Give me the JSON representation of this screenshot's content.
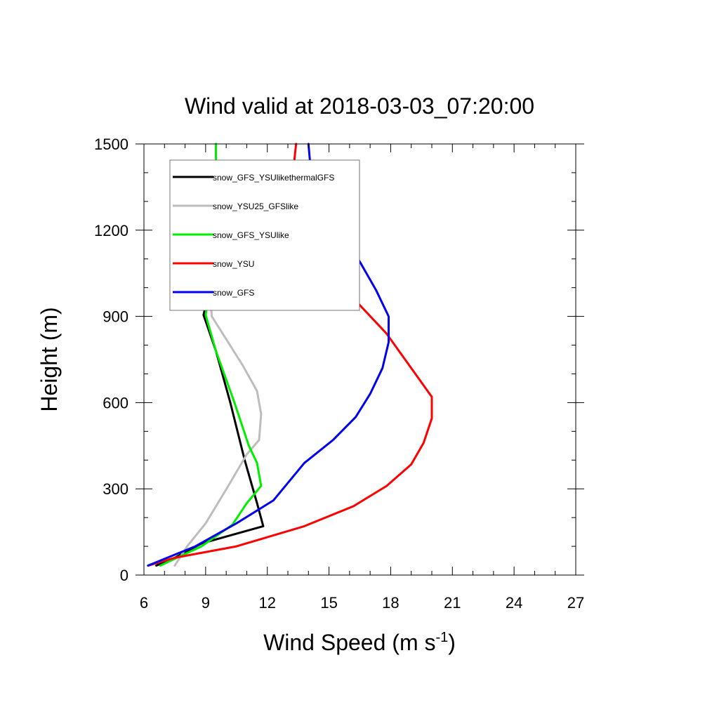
{
  "chart_data": {
    "type": "line",
    "title": "Wind valid at 2018-03-03_07:20:00",
    "xlabel": "Wind Speed (m s",
    "xlabel_sup": "-1",
    "xlabel_end": ")",
    "ylabel": "Height (m)",
    "xlim": [
      6,
      27
    ],
    "ylim": [
      0,
      1500
    ],
    "xticks": [
      "6",
      "9",
      "12",
      "15",
      "18",
      "21",
      "24",
      "27"
    ],
    "yticks": [
      "0",
      "300",
      "600",
      "900",
      "1200",
      "1500"
    ],
    "grid": false,
    "legend_position": "top-left",
    "series": [
      {
        "name": "snow_GFS_YSUlikethermalGFS",
        "color": "#000000",
        "points": [
          [
            6.6,
            33
          ],
          [
            7.5,
            60
          ],
          [
            8.8,
            110
          ],
          [
            10.3,
            140
          ],
          [
            11.8,
            170
          ],
          [
            11.5,
            250
          ],
          [
            10.9,
            400
          ],
          [
            10.2,
            600
          ],
          [
            9.5,
            780
          ],
          [
            8.9,
            905
          ],
          [
            9.2,
            1000
          ],
          [
            9.4,
            1100
          ],
          [
            9.5,
            1300
          ],
          [
            9.5,
            1500
          ]
        ]
      },
      {
        "name": "snow_YSU25_GFSlike",
        "color": "#bdbdbd",
        "points": [
          [
            7.5,
            33
          ],
          [
            8.1,
            100
          ],
          [
            9.0,
            180
          ],
          [
            10.1,
            310
          ],
          [
            11.0,
            420
          ],
          [
            11.6,
            470
          ],
          [
            11.7,
            560
          ],
          [
            11.5,
            640
          ],
          [
            10.8,
            730
          ],
          [
            9.3,
            900
          ],
          [
            9.2,
            1000
          ],
          [
            9.4,
            1100
          ],
          [
            9.5,
            1300
          ],
          [
            9.5,
            1500
          ]
        ]
      },
      {
        "name": "snow_GFS_YSUlike",
        "color": "#00ee00",
        "points": [
          [
            6.8,
            33
          ],
          [
            7.6,
            60
          ],
          [
            8.8,
            100
          ],
          [
            10.3,
            175
          ],
          [
            11.0,
            250
          ],
          [
            11.7,
            310
          ],
          [
            11.5,
            390
          ],
          [
            11.1,
            450
          ],
          [
            10.4,
            600
          ],
          [
            9.5,
            780
          ],
          [
            9.0,
            905
          ],
          [
            9.2,
            1000
          ],
          [
            9.4,
            1100
          ],
          [
            9.5,
            1300
          ],
          [
            9.5,
            1500
          ]
        ]
      },
      {
        "name": "snow_YSU",
        "color": "#ff0000",
        "points": [
          [
            6.2,
            33
          ],
          [
            7.5,
            60
          ],
          [
            10.5,
            100
          ],
          [
            13.8,
            170
          ],
          [
            16.2,
            240
          ],
          [
            17.8,
            310
          ],
          [
            19.0,
            385
          ],
          [
            19.6,
            460
          ],
          [
            20.0,
            545
          ],
          [
            20.0,
            620
          ],
          [
            19.0,
            720
          ],
          [
            17.8,
            840
          ],
          [
            15.7,
            1000
          ],
          [
            13.9,
            1150
          ],
          [
            13.1,
            1300
          ],
          [
            13.4,
            1500
          ]
        ]
      },
      {
        "name": "snow_GFS",
        "color": "#0000ee",
        "points": [
          [
            6.2,
            33
          ],
          [
            8.5,
            100
          ],
          [
            10.5,
            180
          ],
          [
            12.3,
            260
          ],
          [
            13.8,
            390
          ],
          [
            15.2,
            470
          ],
          [
            16.3,
            550
          ],
          [
            17.0,
            630
          ],
          [
            17.6,
            720
          ],
          [
            17.9,
            810
          ],
          [
            17.9,
            900
          ],
          [
            17.3,
            990
          ],
          [
            16.5,
            1090
          ],
          [
            15.5,
            1200
          ],
          [
            14.6,
            1300
          ],
          [
            14.1,
            1420
          ],
          [
            14.0,
            1500
          ]
        ]
      }
    ]
  }
}
